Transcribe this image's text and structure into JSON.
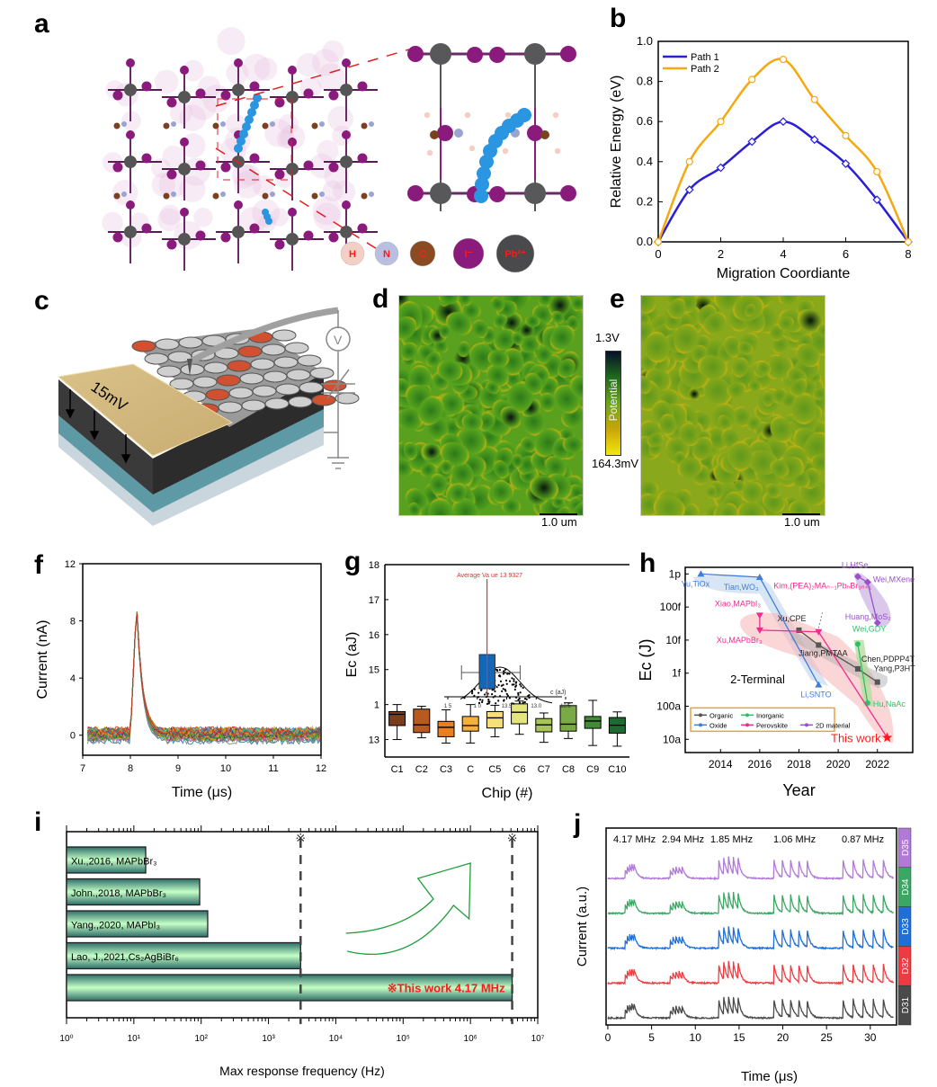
{
  "panels": {
    "a": {
      "letter": "a",
      "legend": [
        {
          "symbol": "H",
          "color": "#f4cfc6"
        },
        {
          "symbol": "N",
          "color": "#b8bfe0"
        },
        {
          "symbol": "C",
          "color": "#8a4b22"
        },
        {
          "symbol": "I⁻",
          "color": "#8a1a7c"
        },
        {
          "symbol": "Pb²⁺",
          "color": "#4a4a4c"
        }
      ]
    },
    "b": {
      "letter": "b"
    },
    "c": {
      "letter": "c",
      "bias_label": "15mV",
      "voltmeter_symbol": "V"
    },
    "d": {
      "letter": "d",
      "scalebar": "1.0 um"
    },
    "e": {
      "letter": "e",
      "scalebar": "1.0 um"
    },
    "colorbar": {
      "top_label": "1.3V",
      "bottom_label": "164.3mV",
      "title": "Potential",
      "colors": [
        "#05102a",
        "#1f6b1c",
        "#6aa51c",
        "#c9a50a",
        "#f2e80c"
      ]
    },
    "f": {
      "letter": "f"
    },
    "g": {
      "letter": "g"
    },
    "h": {
      "letter": "h"
    },
    "i": {
      "letter": "i"
    },
    "j": {
      "letter": "j"
    }
  },
  "chart_data": [
    {
      "id": "b",
      "type": "line",
      "title": "",
      "xlabel": "Migration Coordiante",
      "ylabel": "Relative Energy (eV)",
      "xlim": [
        0,
        8
      ],
      "ylim": [
        0,
        1.0
      ],
      "xticks": [
        "0",
        "2",
        "4",
        "6",
        "8"
      ],
      "yticks": [
        "0.0",
        "0.2",
        "0.4",
        "0.6",
        "0.8",
        "1.0"
      ],
      "x": [
        0,
        1,
        2,
        3,
        4,
        5,
        6,
        7,
        8
      ],
      "legend_position": "top-left",
      "series": [
        {
          "name": "Path 1",
          "color": "#2a1fd6",
          "marker": "diamond",
          "values": [
            0,
            0.26,
            0.37,
            0.5,
            0.6,
            0.51,
            0.39,
            0.21,
            0
          ]
        },
        {
          "name": "Path 2",
          "color": "#f5a80f",
          "marker": "circle",
          "values": [
            0,
            0.4,
            0.6,
            0.81,
            0.91,
            0.71,
            0.53,
            0.35,
            0
          ]
        }
      ]
    },
    {
      "id": "f",
      "type": "line",
      "xlabel": "Time (μs)",
      "ylabel": "Current (nA)",
      "xlim": [
        7,
        12
      ],
      "ylim": [
        -1.4,
        12
      ],
      "xticks": [
        "7",
        "8",
        "9",
        "10",
        "11",
        "12"
      ],
      "yticks": [
        "0",
        "4",
        "8",
        "12"
      ],
      "description": "Overlaid repeated spike traces: baseline ~0 nA, sharp peak ~9.3 nA at ~8.13 μs, decay to baseline by ~8.6 μs",
      "peak": {
        "x": 8.13,
        "y": 9.3
      },
      "baseline": 0,
      "trace_count": 40,
      "palette": [
        "#1f77b4",
        "#ff7f0e",
        "#2ca02c",
        "#d62728",
        "#9467bd",
        "#8c564b",
        "#e377c2",
        "#7f7f7f",
        "#bcbd22",
        "#17becf",
        "#f0a30a",
        "#3a3a3a"
      ]
    },
    {
      "id": "g",
      "type": "box",
      "xlabel": "Chip (#)",
      "ylabel": "Ec (aJ)",
      "ylim": [
        12.5,
        18
      ],
      "yticks": [
        "13",
        "1",
        "15",
        "16",
        "17",
        "18"
      ],
      "ytick_values": [
        13,
        14,
        15,
        16,
        17,
        18
      ],
      "categories": [
        "C1",
        "C2",
        "C3",
        "C",
        "C5",
        "C6",
        "C7",
        "C8",
        "C9",
        "C10"
      ],
      "boxes": [
        {
          "min": 13.0,
          "q1": 13.4,
          "median": 13.72,
          "q3": 13.8,
          "max": 14.0,
          "color": "#7b3d1c"
        },
        {
          "min": 13.05,
          "q1": 13.2,
          "median": 13.42,
          "q3": 13.87,
          "max": 13.95,
          "color": "#b85a1e"
        },
        {
          "min": 12.9,
          "q1": 13.08,
          "median": 13.35,
          "q3": 13.52,
          "max": 13.85,
          "color": "#ee7d1c"
        },
        {
          "min": 12.9,
          "q1": 13.24,
          "median": 13.4,
          "q3": 13.66,
          "max": 14.0,
          "color": "#f5b040"
        },
        {
          "min": 13.08,
          "q1": 13.33,
          "median": 13.62,
          "q3": 13.8,
          "max": 13.98,
          "color": "#f7e07a"
        },
        {
          "min": 13.15,
          "q1": 13.45,
          "median": 13.78,
          "q3": 14.02,
          "max": 14.1,
          "color": "#e4e67c"
        },
        {
          "min": 12.92,
          "q1": 13.22,
          "median": 13.42,
          "q3": 13.6,
          "max": 13.76,
          "color": "#a9c55a"
        },
        {
          "min": 13.03,
          "q1": 13.24,
          "median": 13.44,
          "q3": 13.97,
          "max": 14.05,
          "color": "#7aaa45"
        },
        {
          "min": 12.83,
          "q1": 13.32,
          "median": 13.53,
          "q3": 13.66,
          "max": 14.12,
          "color": "#3f8c35"
        },
        {
          "min": 12.81,
          "q1": 13.18,
          "median": 13.41,
          "q3": 13.63,
          "max": 13.79,
          "color": "#1e6a30"
        }
      ],
      "inset": {
        "annotation": "Average Va ue  13  9327",
        "xlabel": "c (aJ)",
        "xticks": [
          "1 5",
          "1 0",
          "13.5",
          "13.0",
          "12.5"
        ],
        "box": {
          "min": 14.42,
          "q1": 14.08,
          "median": 13.93,
          "q3": 13.78,
          "max": 13.3
        },
        "average": 13.9327,
        "box_color": "#1167b8",
        "average_line_color": "#e8303a"
      }
    },
    {
      "id": "h",
      "type": "scatter",
      "xlabel": "Year",
      "ylabel": "Ec (J)",
      "xlim": [
        2012.2,
        2023.8
      ],
      "ylim_log10": [
        -17.4,
        -11.8
      ],
      "xticks": [
        "2014",
        "2016",
        "2018",
        "2020",
        "2022"
      ],
      "yticks": [
        "10a",
        "100a",
        "1f",
        "10f",
        "100f",
        "1p"
      ],
      "ytick_log10": [
        -17,
        -16,
        -15,
        -14,
        -13,
        -12
      ],
      "annotation": "2-Terminal",
      "legend_position": "bottom-left",
      "series": [
        {
          "name": "Organic",
          "color": "#555555",
          "marker": "square",
          "points": [
            {
              "x": 2018,
              "log10": -13.7,
              "label": "Xu,CPE"
            },
            {
              "x": 2019,
              "log10": -14.15,
              "label": "Jiang,PMTAA"
            },
            {
              "x": 2021,
              "log10": -14.87,
              "label": "Chen,PDPP4T"
            },
            {
              "x": 2022,
              "log10": -15.27,
              "label": "Yang,P3HT"
            }
          ]
        },
        {
          "name": "Inorganic",
          "color": "#2bbf6a",
          "marker": "circle",
          "points": [
            {
              "x": 2021,
              "log10": -14.12,
              "label": "Wei,GDY"
            },
            {
              "x": 2021.5,
              "log10": -15.9,
              "label": "Hu,NaAc"
            }
          ]
        },
        {
          "name": "Oxide",
          "color": "#3f7fd9",
          "marker": "triangle-up",
          "points": [
            {
              "x": 2013,
              "log10": -12.0,
              "label": "Yu,TiOx"
            },
            {
              "x": 2016,
              "log10": -12.1,
              "label": "Tian,WO₃"
            },
            {
              "x": 2019,
              "log10": -15.35,
              "label": "Li,SNTO"
            }
          ]
        },
        {
          "name": "Perovskite",
          "color": "#f02b8f",
          "marker": "triangle-down",
          "points": [
            {
              "x": 2016,
              "log10": -13.25,
              "label": "Xiao,MAPbI₃"
            },
            {
              "x": 2016,
              "log10": -13.7,
              "label": "Xu,MAPbBr₃"
            },
            {
              "x": 2019,
              "log10": -13.75,
              "label": "Kim,(PEA)₂MAₙ₋₁PbₙBr₃ₙ₊₁"
            },
            {
              "x": 2022.5,
              "log10": -16.95,
              "label": ""
            }
          ]
        },
        {
          "name": "2D material",
          "color": "#9b4fcf",
          "marker": "diamond",
          "points": [
            {
              "x": 2021,
              "log10": -12.08,
              "label": "Li,HfSe"
            },
            {
              "x": 2021.5,
              "log10": -12.25,
              "label": "Wei,MXene"
            },
            {
              "x": 2022,
              "log10": -13.48,
              "label": "Huang,MoS₂"
            }
          ]
        }
      ],
      "highlight": {
        "label": "This work",
        "x": 2022.5,
        "log10": -16.95,
        "color": "#ff1a1a",
        "marker": "star"
      }
    },
    {
      "id": "i",
      "type": "bar",
      "orientation": "horizontal",
      "xlabel": "Max response frequency (Hz)",
      "xscale": "log",
      "xlim_log10": [
        0,
        7
      ],
      "xticks": [
        "10⁰",
        "10¹",
        "10²",
        "10³",
        "10⁴",
        "10⁵",
        "10⁶",
        "10⁷"
      ],
      "categories": [
        "Xu.,2016, MAPbBr₃",
        "John.,2018, MAPbBr₃",
        "Yang.,2020, MAPbI₃",
        "Lao, J.,2021,Cs₂AgBiBr₆",
        "※This work 4.17 MHz"
      ],
      "values_hz": [
        15,
        95,
        125,
        3000,
        4170000
      ],
      "highlight_label_color": "#ff1a1a",
      "reference_lines_hz": [
        3000,
        4170000
      ],
      "bar_colors": [
        "#2d6e6a",
        "#c6ffc6"
      ]
    },
    {
      "id": "j",
      "type": "line",
      "xlabel": "Time (μs)",
      "ylabel": "Current (a.u.)",
      "xlim": [
        -0.2,
        33
      ],
      "xticks": [
        "0",
        "5",
        "10",
        "15",
        "20",
        "25",
        "30"
      ],
      "frequency_labels": [
        "4.17 MHz",
        "2.94 MHz",
        "1.85 MHz",
        "1.06 MHz",
        "0.87 MHz"
      ],
      "pulse_groups": [
        {
          "start": 2.0,
          "count": 5,
          "period": 0.24
        },
        {
          "start": 7.1,
          "count": 5,
          "period": 0.34
        },
        {
          "start": 12.7,
          "count": 5,
          "period": 0.54
        },
        {
          "start": 19.0,
          "count": 5,
          "period": 0.94
        },
        {
          "start": 26.9,
          "count": 5,
          "period": 1.15
        }
      ],
      "series": [
        {
          "name": "D35",
          "color": "#b07ad6"
        },
        {
          "name": "D34",
          "color": "#3aa863"
        },
        {
          "name": "D33",
          "color": "#1f6fd6"
        },
        {
          "name": "D32",
          "color": "#ee3b42"
        },
        {
          "name": "D31",
          "color": "#4a4a4a"
        }
      ]
    }
  ]
}
